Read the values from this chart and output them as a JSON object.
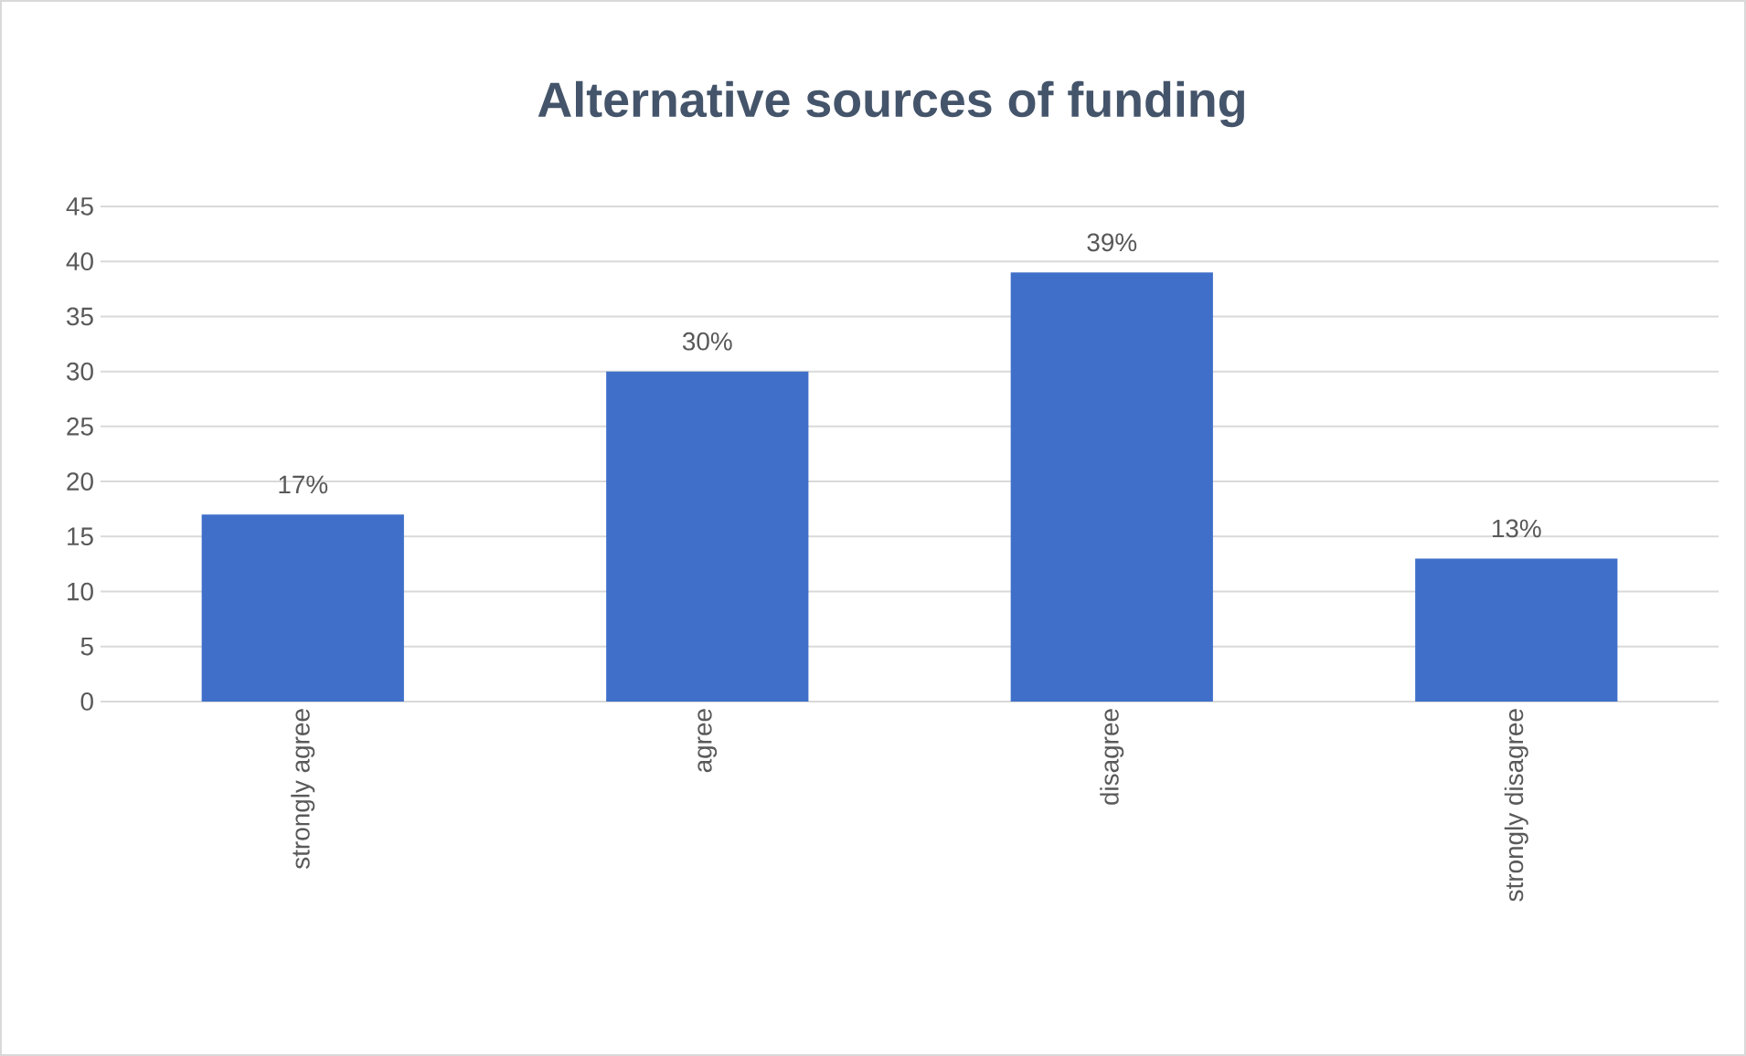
{
  "chart_data": {
    "type": "bar",
    "title": "Alternative sources of funding",
    "categories": [
      "strongly agree",
      "agree",
      "disagree",
      "strongly disagree"
    ],
    "values": [
      17,
      30,
      39,
      13
    ],
    "value_labels": [
      "17%",
      "30%",
      "39%",
      "13%"
    ],
    "color": "#3f6fc9",
    "ylim": [
      0,
      45
    ],
    "yticks": [
      0,
      5,
      10,
      15,
      20,
      25,
      30,
      35,
      40,
      45
    ],
    "grid": "y"
  }
}
